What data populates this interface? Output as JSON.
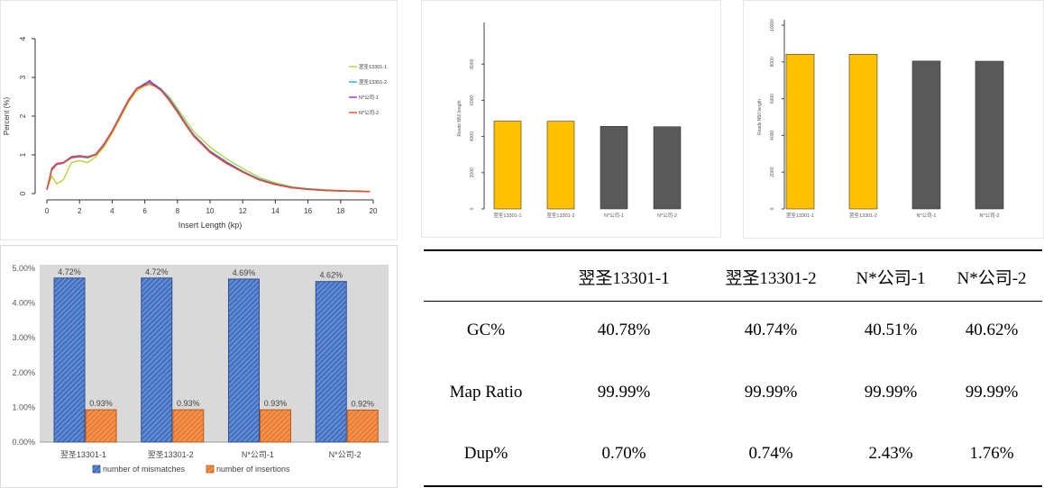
{
  "chart_data": [
    {
      "type": "line",
      "xlabel": "Insert Length (kp)",
      "ylabel": "Percent (%)",
      "xlim": [
        0,
        20
      ],
      "ylim": [
        0,
        4
      ],
      "x_ticks": [
        "0",
        "2",
        "4",
        "6",
        "8",
        "10",
        "12",
        "14",
        "16",
        "18",
        "20"
      ],
      "y_ticks": [
        "0",
        "1",
        "2",
        "3",
        "4"
      ],
      "legend_position": "right",
      "series": [
        {
          "name": "翌圣13301-1",
          "color": "#b5d63a",
          "x": [
            0,
            0.3,
            0.6,
            1,
            1.5,
            2,
            2.5,
            3,
            3.5,
            4,
            4.5,
            5,
            5.5,
            6,
            6.3,
            6.6,
            7,
            7.5,
            8,
            8.5,
            9,
            10,
            11,
            12,
            13,
            14,
            15,
            16,
            17,
            18,
            19,
            19.8
          ],
          "y": [
            0.1,
            0.45,
            0.25,
            0.35,
            0.8,
            0.85,
            0.8,
            0.95,
            1.2,
            1.55,
            1.95,
            2.35,
            2.65,
            2.78,
            2.8,
            2.78,
            2.7,
            2.5,
            2.2,
            1.9,
            1.6,
            1.2,
            0.9,
            0.65,
            0.42,
            0.28,
            0.18,
            0.13,
            0.1,
            0.08,
            0.07,
            0.06
          ]
        },
        {
          "name": "翌圣13301-2",
          "color": "#29a9d9",
          "x": [
            0,
            0.3,
            0.6,
            1,
            1.5,
            2,
            2.5,
            3,
            3.5,
            4,
            4.5,
            5,
            5.5,
            6,
            6.3,
            6.6,
            7,
            7.5,
            8,
            8.5,
            9,
            10,
            11,
            12,
            13,
            14,
            15,
            16,
            17,
            18,
            19,
            19.8
          ],
          "y": [
            0.1,
            0.6,
            0.75,
            0.78,
            0.92,
            0.95,
            0.92,
            1.0,
            1.25,
            1.6,
            2.0,
            2.4,
            2.7,
            2.85,
            2.88,
            2.82,
            2.7,
            2.45,
            2.15,
            1.82,
            1.52,
            1.1,
            0.82,
            0.58,
            0.38,
            0.25,
            0.16,
            0.12,
            0.09,
            0.07,
            0.06,
            0.05
          ]
        },
        {
          "name": "N*公司-1",
          "color": "#a02fd0",
          "x": [
            0,
            0.3,
            0.6,
            1,
            1.5,
            2,
            2.5,
            3,
            3.5,
            4,
            4.5,
            5,
            5.5,
            6,
            6.3,
            6.6,
            7,
            7.5,
            8,
            8.5,
            9,
            10,
            11,
            12,
            13,
            14,
            15,
            16,
            17,
            18,
            19,
            19.8
          ],
          "y": [
            0.1,
            0.65,
            0.78,
            0.8,
            0.95,
            0.98,
            0.95,
            1.02,
            1.28,
            1.62,
            2.02,
            2.42,
            2.72,
            2.82,
            2.92,
            2.8,
            2.68,
            2.42,
            2.12,
            1.8,
            1.5,
            1.08,
            0.8,
            0.56,
            0.36,
            0.24,
            0.15,
            0.11,
            0.08,
            0.07,
            0.06,
            0.05
          ]
        },
        {
          "name": "N*公司-2",
          "color": "#f04a2c",
          "x": [
            0,
            0.3,
            0.6,
            1,
            1.5,
            2,
            2.5,
            3,
            3.5,
            4,
            4.5,
            5,
            5.5,
            6,
            6.3,
            6.6,
            7,
            7.5,
            8,
            8.5,
            9,
            10,
            11,
            12,
            13,
            14,
            15,
            16,
            17,
            18,
            19,
            19.8
          ],
          "y": [
            0.1,
            0.62,
            0.76,
            0.79,
            0.93,
            0.96,
            0.94,
            1.01,
            1.26,
            1.6,
            2.0,
            2.4,
            2.7,
            2.8,
            2.85,
            2.78,
            2.66,
            2.4,
            2.1,
            1.78,
            1.48,
            1.06,
            0.78,
            0.55,
            0.35,
            0.23,
            0.15,
            0.11,
            0.08,
            0.07,
            0.06,
            0.05
          ]
        }
      ]
    },
    {
      "type": "bar",
      "ylabel": "Reads N50 length",
      "categories": [
        "翌圣13301-1",
        "翌圣13301-2",
        "N*公司-1",
        "N*公司-2"
      ],
      "values": [
        4850,
        4840,
        4560,
        4540
      ],
      "colors": [
        "#ffc000",
        "#ffc000",
        "#595959",
        "#595959"
      ],
      "ylim": [
        0,
        10000
      ],
      "y_ticks": [
        "0",
        "2000",
        "4000",
        "6000",
        "8000"
      ]
    },
    {
      "type": "bar",
      "ylabel": "Reads N50 length",
      "categories": [
        "翌圣13301-1",
        "翌圣13301-2",
        "N*公司-1",
        "N*公司-2"
      ],
      "values": [
        8420,
        8420,
        8050,
        8040
      ],
      "colors": [
        "#ffc000",
        "#ffc000",
        "#595959",
        "#595959"
      ],
      "ylim": [
        0,
        10000
      ],
      "y_ticks": [
        "0",
        "2000",
        "4000",
        "6000",
        "8000",
        "10000"
      ]
    },
    {
      "type": "bar",
      "categories": [
        "翌圣13301-1",
        "翌圣13301-2",
        "N*公司-1",
        "N*公司-2"
      ],
      "ylim": [
        0,
        5
      ],
      "y_ticks": [
        "0.00%",
        "1.00%",
        "2.00%",
        "3.00%",
        "4.00%",
        "5.00%"
      ],
      "legend_position": "bottom",
      "series": [
        {
          "name": "number of mismatches",
          "color": "#4472c4",
          "values": [
            4.72,
            4.72,
            4.69,
            4.62
          ],
          "labels": [
            "4.72%",
            "4.72%",
            "4.69%",
            "4.62%"
          ]
        },
        {
          "name": "number of insertions",
          "color": "#ed7d31",
          "values": [
            0.93,
            0.93,
            0.93,
            0.92
          ],
          "labels": [
            "0.93%",
            "0.93%",
            "0.93%",
            "0.92%"
          ]
        }
      ]
    }
  ],
  "table": {
    "headers": [
      "",
      "翌圣13301-1",
      "翌圣13301-2",
      "N*公司-1",
      "N*公司-2"
    ],
    "rows": [
      {
        "label": "GC%",
        "values": [
          "40.78%",
          "40.74%",
          "40.51%",
          "40.62%"
        ]
      },
      {
        "label": "Map Ratio",
        "values": [
          "99.99%",
          "99.99%",
          "99.99%",
          "99.99%"
        ]
      },
      {
        "label": "Dup%",
        "values": [
          "0.70%",
          "0.74%",
          "2.43%",
          "1.76%"
        ]
      }
    ]
  }
}
